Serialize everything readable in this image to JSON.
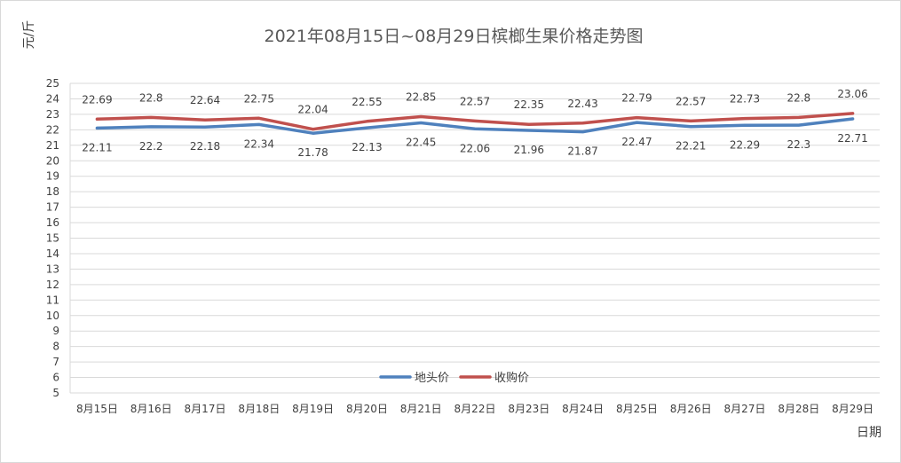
{
  "chart_data": {
    "type": "line",
    "title": "2021年08月15日~08月29日槟榔生果价格走势图",
    "xlabel": "日期",
    "ylabel": "元/斤",
    "ylim": [
      5,
      25
    ],
    "yticks": [
      5,
      6,
      7,
      8,
      9,
      10,
      11,
      12,
      13,
      14,
      15,
      16,
      17,
      18,
      19,
      20,
      21,
      22,
      23,
      24,
      25
    ],
    "grid": true,
    "legend_position": "bottom-center",
    "categories": [
      "8月15日",
      "8月16日",
      "8月17日",
      "8月18日",
      "8月19日",
      "8月20日",
      "8月21日",
      "8月22日",
      "8月23日",
      "8月24日",
      "8月25日",
      "8月26日",
      "8月27日",
      "8月28日",
      "8月29日"
    ],
    "series": [
      {
        "name": "地头价",
        "color": "#4f81bd",
        "label_position": "below",
        "values": [
          22.11,
          22.2,
          22.18,
          22.34,
          21.78,
          22.13,
          22.45,
          22.06,
          21.96,
          21.87,
          22.47,
          22.21,
          22.29,
          22.3,
          22.71
        ]
      },
      {
        "name": "收购价",
        "color": "#c0504d",
        "label_position": "above",
        "values": [
          22.69,
          22.8,
          22.64,
          22.75,
          22.04,
          22.55,
          22.85,
          22.57,
          22.35,
          22.43,
          22.79,
          22.57,
          22.73,
          22.8,
          23.06
        ]
      }
    ]
  }
}
